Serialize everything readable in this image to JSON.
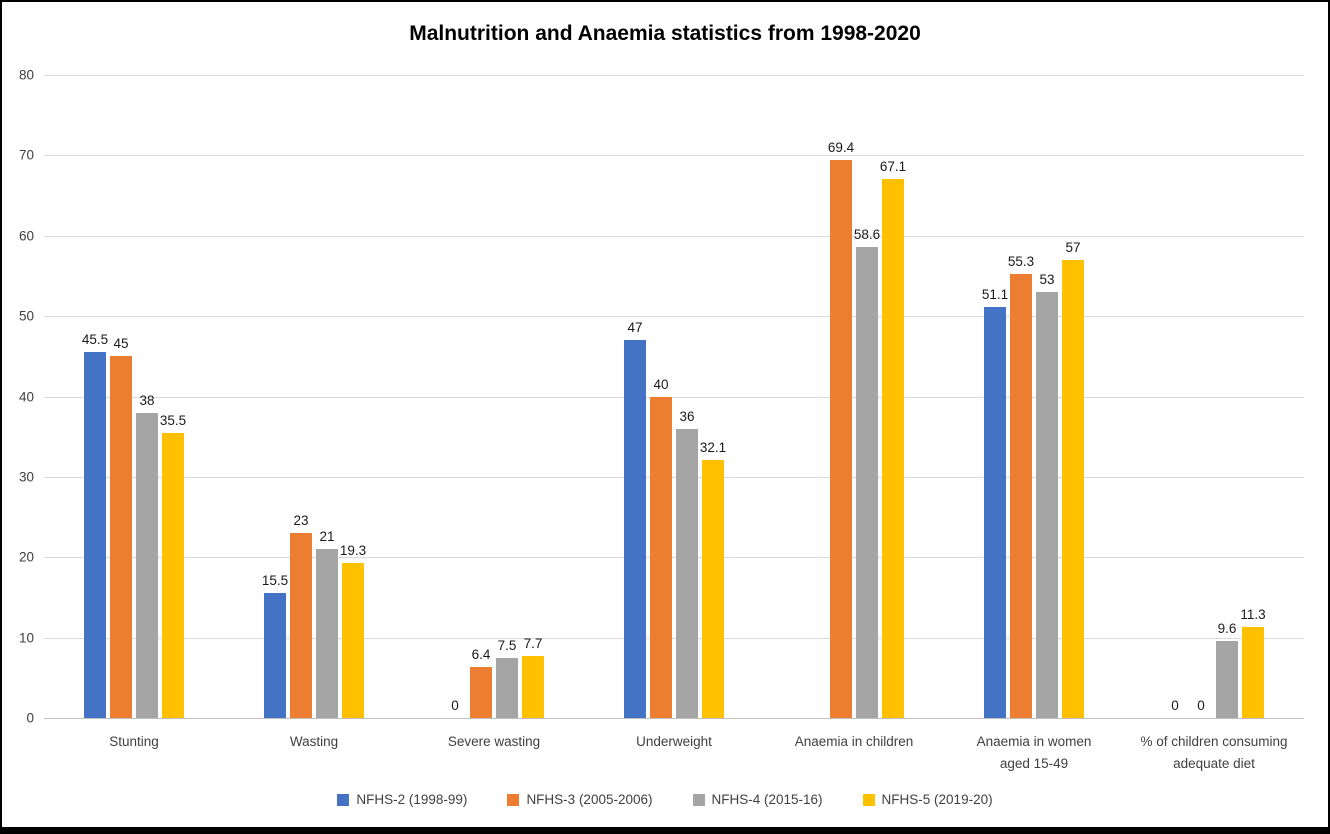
{
  "chart_data": {
    "type": "bar",
    "title": "Malnutrition and Anaemia statistics from 1998-2020",
    "categories": [
      "Stunting",
      "Wasting",
      "Severe wasting",
      "Underweight",
      "Anaemia in children",
      "Anaemia in women\naged 15-49",
      "% of children consuming\nadequate diet"
    ],
    "series": [
      {
        "name": "NFHS-2 (1998-99)",
        "color": "#4472C4",
        "values": [
          45.5,
          15.5,
          0,
          47,
          null,
          51.1,
          0
        ]
      },
      {
        "name": "NFHS-3 (2005-2006)",
        "color": "#ED7D31",
        "values": [
          45,
          23,
          6.4,
          40,
          69.4,
          55.3,
          0
        ]
      },
      {
        "name": "NFHS-4 (2015-16)",
        "color": "#A5A5A5",
        "values": [
          38,
          21,
          7.5,
          36,
          58.6,
          53,
          9.6
        ]
      },
      {
        "name": "NFHS-5 (2019-20)",
        "color": "#FFC000",
        "values": [
          35.5,
          19.3,
          7.7,
          32.1,
          67.1,
          57,
          11.3
        ]
      }
    ],
    "xlabel": "",
    "ylabel": "",
    "ylim": [
      0,
      80
    ],
    "yticks": [
      0,
      10,
      20,
      30,
      40,
      50,
      60,
      70,
      80
    ],
    "grid": true,
    "legend_position": "bottom",
    "colors": {
      "gridline": "#D9D9D9",
      "axis_text": "#404040",
      "label_text": "#1A1A1A"
    }
  }
}
